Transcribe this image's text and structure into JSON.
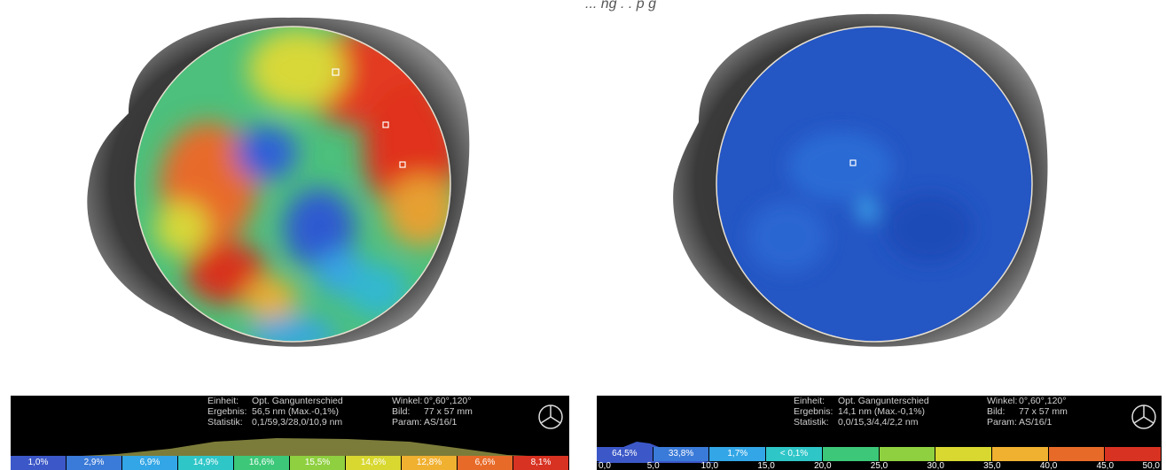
{
  "caption": "... ng . . p    g  ",
  "left_bar": {
    "einheit_label": "Einheit:",
    "einheit_value": "Opt. Gangunterschied",
    "ergebnis_label": "Ergebnis:",
    "ergebnis_value": "56,5 nm (Max.-0,1%)",
    "statistik_label": "Statistik:",
    "statistik_value": "0,1/59,3/28,0/10,9 nm",
    "winkel_label": "Winkel:",
    "winkel_value": "0°,60°,120°",
    "bild_label": "Bild:",
    "bild_value": "77 x 57 mm",
    "param_label": "Param:",
    "param_value": "AS/16/1",
    "segments": [
      "1,0%",
      "2,9%",
      "6,9%",
      "14,9%",
      "16,6%",
      "15,5%",
      "14,6%",
      "12,8%",
      "6,6%",
      "8,1%"
    ]
  },
  "right_bar": {
    "einheit_label": "Einheit:",
    "einheit_value": "Opt. Gangunterschied",
    "ergebnis_label": "Ergebnis:",
    "ergebnis_value": "14,1 nm (Max.-0,1%)",
    "statistik_label": "Statistik:",
    "statistik_value": "0,0/15,3/4,4/2,2 nm",
    "winkel_label": "Winkel:",
    "winkel_value": "0°,60°,120°",
    "bild_label": "Bild:",
    "bild_value": "77 x 57 mm",
    "param_label": "Param:",
    "param_value": "AS/16/1",
    "segments": [
      "64,5%",
      "33,8%",
      "1,7%",
      "< 0,1%",
      "",
      "",
      "",
      "",
      "",
      ""
    ],
    "ticks": [
      "0,0",
      "5,0",
      "10,0",
      "15,0",
      "20,0",
      "25,0",
      "30,0",
      "35,0",
      "40,0",
      "45,0",
      "50,0"
    ]
  },
  "colors": {
    "scale": [
      "#3c58c8",
      "#3a7ad8",
      "#32a6e6",
      "#2fc6c8",
      "#3cc878",
      "#8fd040",
      "#d8d830",
      "#f0b030",
      "#e86a28",
      "#d83222"
    ]
  }
}
